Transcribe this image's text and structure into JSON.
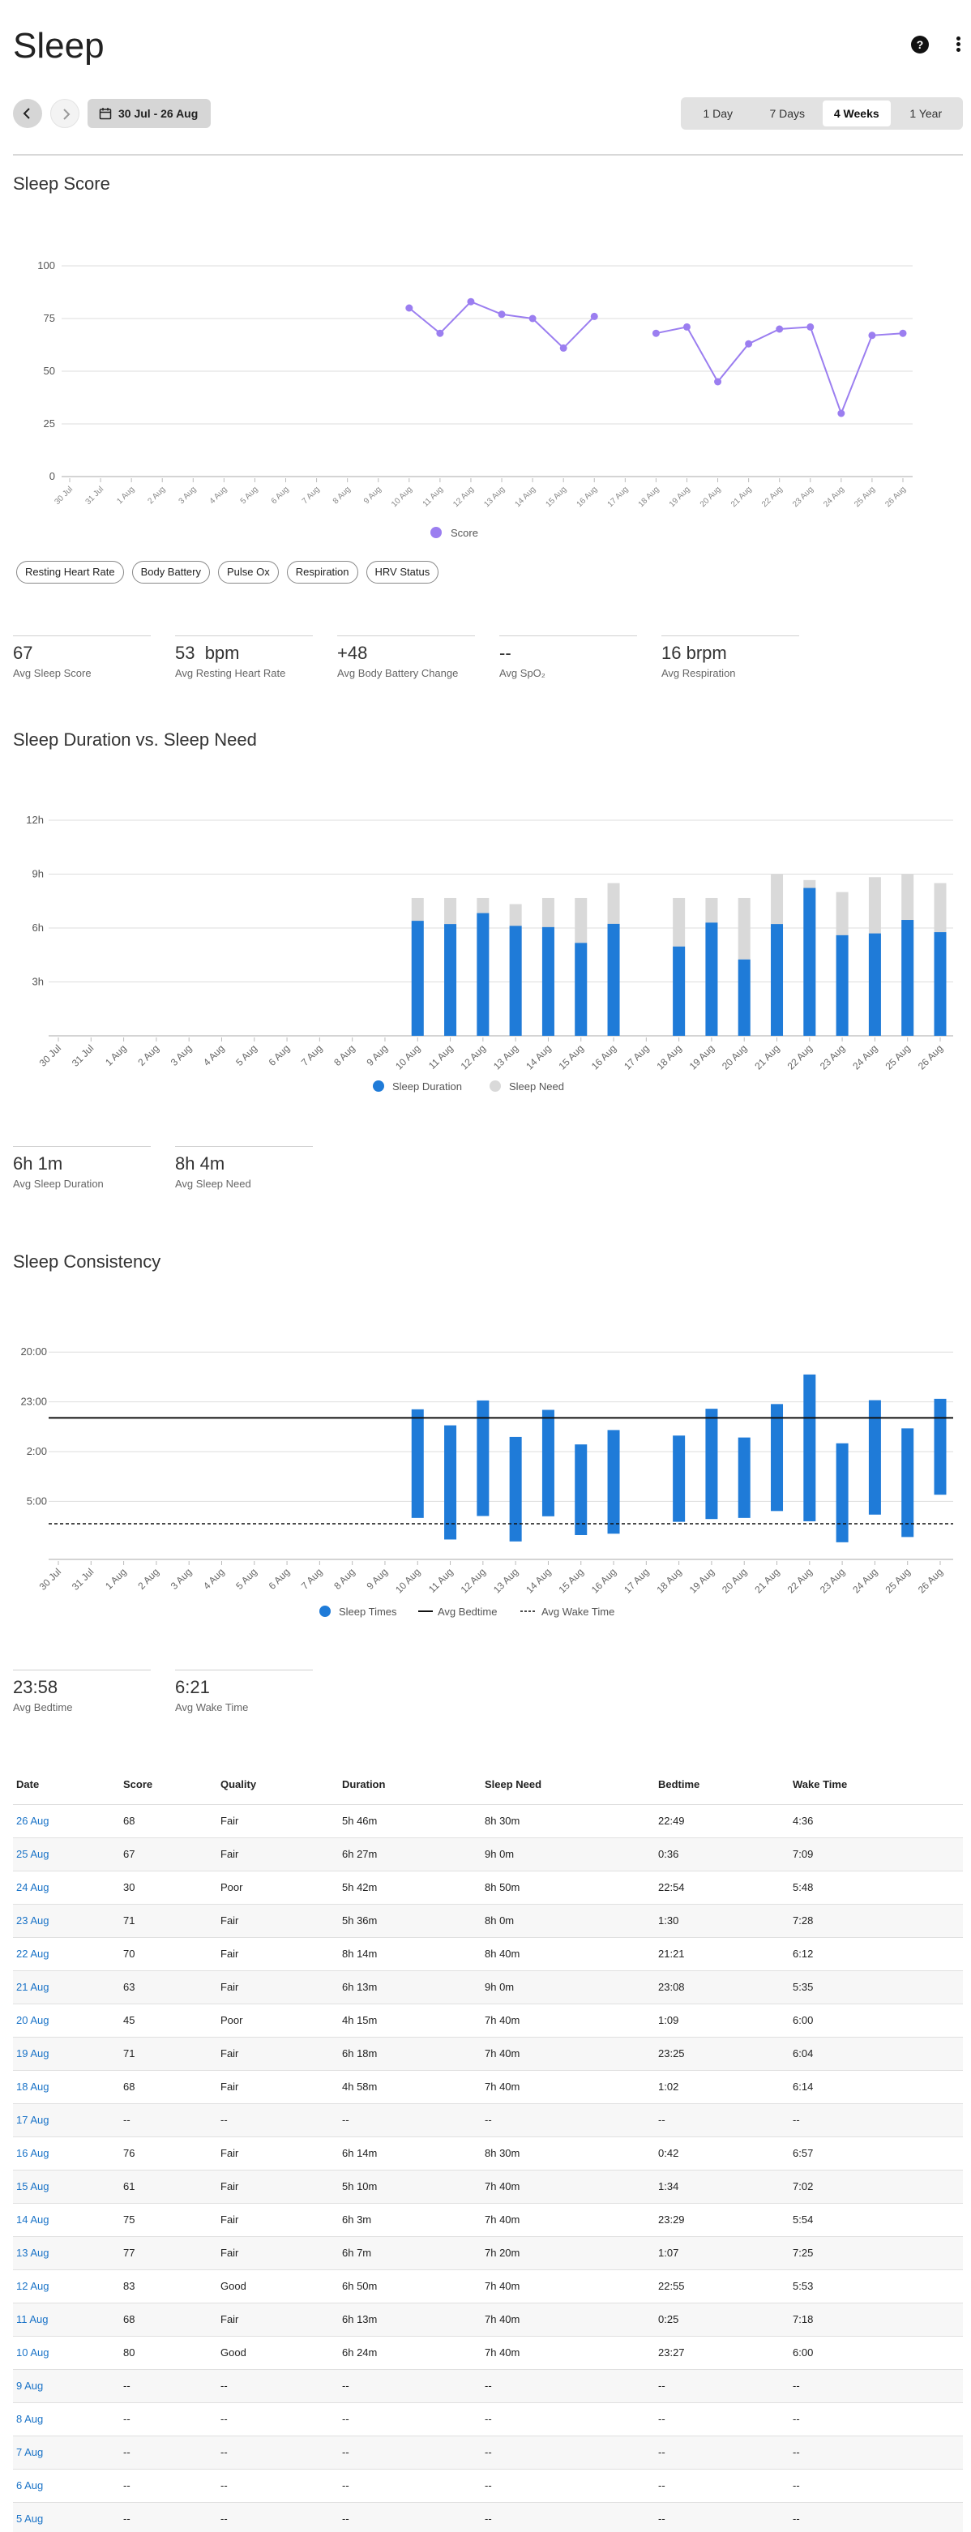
{
  "page": {
    "title": "Sleep"
  },
  "nav": {
    "date_range": "30 Jul - 26 Aug",
    "periods": [
      {
        "label": "1 Day"
      },
      {
        "label": "7 Days"
      },
      {
        "label": "4 Weeks",
        "active": true
      },
      {
        "label": "1 Year"
      }
    ]
  },
  "dates": [
    "30 Jul",
    "31 Jul",
    "1 Aug",
    "2 Aug",
    "3 Aug",
    "4 Aug",
    "5 Aug",
    "6 Aug",
    "7 Aug",
    "8 Aug",
    "9 Aug",
    "10 Aug",
    "11 Aug",
    "12 Aug",
    "13 Aug",
    "14 Aug",
    "15 Aug",
    "16 Aug",
    "17 Aug",
    "18 Aug",
    "19 Aug",
    "20 Aug",
    "21 Aug",
    "22 Aug",
    "23 Aug",
    "24 Aug",
    "25 Aug",
    "26 Aug"
  ],
  "score_section": {
    "title": "Sleep Score",
    "legend": "Score",
    "toggles": [
      "Resting Heart Rate",
      "Body Battery",
      "Pulse Ox",
      "Respiration",
      "HRV Status"
    ],
    "stats": [
      {
        "value": "67",
        "label": "Avg Sleep Score"
      },
      {
        "value": "53  bpm",
        "label": "Avg Resting Heart Rate"
      },
      {
        "value": "+48",
        "label": "Avg Body Battery Change"
      },
      {
        "value": "--",
        "label": "Avg SpO₂"
      },
      {
        "value": "16 brpm",
        "label": "Avg Respiration"
      }
    ]
  },
  "duration_section": {
    "title": "Sleep Duration vs. Sleep Need",
    "legend": [
      "Sleep Duration",
      "Sleep Need"
    ],
    "stats": [
      {
        "value": "6h 1m",
        "label": "Avg Sleep Duration"
      },
      {
        "value": "8h 4m",
        "label": "Avg Sleep Need"
      }
    ]
  },
  "consistency_section": {
    "title": "Sleep Consistency",
    "legend": [
      "Sleep Times",
      "Avg Bedtime",
      "Avg Wake Time"
    ],
    "stats": [
      {
        "value": "23:58",
        "label": "Avg Bedtime"
      },
      {
        "value": "6:21",
        "label": "Avg Wake Time"
      }
    ]
  },
  "chart_data": [
    {
      "type": "line",
      "title": "Sleep Score",
      "x": [
        "30 Jul",
        "31 Jul",
        "1 Aug",
        "2 Aug",
        "3 Aug",
        "4 Aug",
        "5 Aug",
        "6 Aug",
        "7 Aug",
        "8 Aug",
        "9 Aug",
        "10 Aug",
        "11 Aug",
        "12 Aug",
        "13 Aug",
        "14 Aug",
        "15 Aug",
        "16 Aug",
        "17 Aug",
        "18 Aug",
        "19 Aug",
        "20 Aug",
        "21 Aug",
        "22 Aug",
        "23 Aug",
        "24 Aug",
        "25 Aug",
        "26 Aug"
      ],
      "series": [
        {
          "name": "Score",
          "color": "#9b7ef0",
          "values": [
            null,
            null,
            null,
            null,
            null,
            null,
            null,
            null,
            null,
            null,
            null,
            80,
            68,
            83,
            77,
            75,
            61,
            76,
            null,
            68,
            71,
            45,
            63,
            70,
            71,
            30,
            67,
            68
          ]
        }
      ],
      "ylim": [
        0,
        100
      ],
      "yticks": [
        0,
        25,
        50,
        75,
        100
      ],
      "legend": "bottom"
    },
    {
      "type": "bar",
      "title": "Sleep Duration vs. Sleep Need",
      "categories": [
        "30 Jul",
        "31 Jul",
        "1 Aug",
        "2 Aug",
        "3 Aug",
        "4 Aug",
        "5 Aug",
        "6 Aug",
        "7 Aug",
        "8 Aug",
        "9 Aug",
        "10 Aug",
        "11 Aug",
        "12 Aug",
        "13 Aug",
        "14 Aug",
        "15 Aug",
        "16 Aug",
        "17 Aug",
        "18 Aug",
        "19 Aug",
        "20 Aug",
        "21 Aug",
        "22 Aug",
        "23 Aug",
        "24 Aug",
        "25 Aug",
        "26 Aug"
      ],
      "series": [
        {
          "name": "Sleep Duration",
          "color": "#1f7bd8",
          "unit": "hours",
          "values": [
            null,
            null,
            null,
            null,
            null,
            null,
            null,
            null,
            null,
            null,
            null,
            6.4,
            6.22,
            6.83,
            6.12,
            6.05,
            5.17,
            6.23,
            null,
            4.97,
            6.3,
            4.25,
            6.22,
            8.23,
            5.6,
            5.7,
            6.45,
            5.77
          ]
        },
        {
          "name": "Sleep Need",
          "color": "#d9d9d9",
          "unit": "hours",
          "values": [
            null,
            null,
            null,
            null,
            null,
            null,
            null,
            null,
            null,
            null,
            null,
            7.67,
            7.67,
            7.67,
            7.33,
            7.67,
            7.67,
            8.5,
            null,
            7.67,
            7.67,
            7.67,
            9.0,
            8.67,
            8.0,
            8.83,
            9.0,
            8.5
          ]
        }
      ],
      "yticks": [
        "3h",
        "6h",
        "9h",
        "12h"
      ],
      "ylim": [
        0,
        12
      ],
      "legend": "bottom"
    },
    {
      "type": "bar",
      "title": "Sleep Consistency",
      "categories": [
        "30 Jul",
        "31 Jul",
        "1 Aug",
        "2 Aug",
        "3 Aug",
        "4 Aug",
        "5 Aug",
        "6 Aug",
        "7 Aug",
        "8 Aug",
        "9 Aug",
        "10 Aug",
        "11 Aug",
        "12 Aug",
        "13 Aug",
        "14 Aug",
        "15 Aug",
        "16 Aug",
        "17 Aug",
        "18 Aug",
        "19 Aug",
        "20 Aug",
        "21 Aug",
        "22 Aug",
        "23 Aug",
        "24 Aug",
        "25 Aug",
        "26 Aug"
      ],
      "series": [
        {
          "name": "Sleep Times",
          "color": "#1f7bd8",
          "bedtime": [
            null,
            null,
            null,
            null,
            null,
            null,
            null,
            null,
            null,
            null,
            null,
            "23:27",
            "0:25",
            "22:55",
            "1:07",
            "23:29",
            "1:34",
            "0:42",
            null,
            "1:02",
            "23:25",
            "1:09",
            "23:08",
            "21:21",
            "1:30",
            "22:54",
            "0:36",
            "22:49"
          ],
          "waketime": [
            null,
            null,
            null,
            null,
            null,
            null,
            null,
            null,
            null,
            null,
            null,
            "6:00",
            "7:18",
            "5:53",
            "7:25",
            "5:54",
            "7:02",
            "6:57",
            null,
            "6:14",
            "6:04",
            "6:00",
            "5:35",
            "6:12",
            "7:28",
            "5:48",
            "7:09",
            "4:36"
          ]
        }
      ],
      "avg_bedtime": "23:58",
      "avg_waketime": "6:21",
      "yticks": [
        "20:00",
        "23:00",
        "2:00",
        "5:00"
      ],
      "legend": "bottom"
    }
  ],
  "table": {
    "headers": [
      "Date",
      "Score",
      "Quality",
      "Duration",
      "Sleep Need",
      "Bedtime",
      "Wake Time"
    ],
    "rows": [
      [
        "26 Aug",
        "68",
        "Fair",
        "5h 46m",
        "8h 30m",
        "22:49",
        "4:36"
      ],
      [
        "25 Aug",
        "67",
        "Fair",
        "6h 27m",
        "9h 0m",
        "0:36",
        "7:09"
      ],
      [
        "24 Aug",
        "30",
        "Poor",
        "5h 42m",
        "8h 50m",
        "22:54",
        "5:48"
      ],
      [
        "23 Aug",
        "71",
        "Fair",
        "5h 36m",
        "8h 0m",
        "1:30",
        "7:28"
      ],
      [
        "22 Aug",
        "70",
        "Fair",
        "8h 14m",
        "8h 40m",
        "21:21",
        "6:12"
      ],
      [
        "21 Aug",
        "63",
        "Fair",
        "6h 13m",
        "9h 0m",
        "23:08",
        "5:35"
      ],
      [
        "20 Aug",
        "45",
        "Poor",
        "4h 15m",
        "7h 40m",
        "1:09",
        "6:00"
      ],
      [
        "19 Aug",
        "71",
        "Fair",
        "6h 18m",
        "7h 40m",
        "23:25",
        "6:04"
      ],
      [
        "18 Aug",
        "68",
        "Fair",
        "4h 58m",
        "7h 40m",
        "1:02",
        "6:14"
      ],
      [
        "17 Aug",
        "--",
        "--",
        "--",
        "--",
        "--",
        "--"
      ],
      [
        "16 Aug",
        "76",
        "Fair",
        "6h 14m",
        "8h 30m",
        "0:42",
        "6:57"
      ],
      [
        "15 Aug",
        "61",
        "Fair",
        "5h 10m",
        "7h 40m",
        "1:34",
        "7:02"
      ],
      [
        "14 Aug",
        "75",
        "Fair",
        "6h 3m",
        "7h 40m",
        "23:29",
        "5:54"
      ],
      [
        "13 Aug",
        "77",
        "Fair",
        "6h 7m",
        "7h 20m",
        "1:07",
        "7:25"
      ],
      [
        "12 Aug",
        "83",
        "Good",
        "6h 50m",
        "7h 40m",
        "22:55",
        "5:53"
      ],
      [
        "11 Aug",
        "68",
        "Fair",
        "6h 13m",
        "7h 40m",
        "0:25",
        "7:18"
      ],
      [
        "10 Aug",
        "80",
        "Good",
        "6h 24m",
        "7h 40m",
        "23:27",
        "6:00"
      ],
      [
        "9 Aug",
        "--",
        "--",
        "--",
        "--",
        "--",
        "--"
      ],
      [
        "8 Aug",
        "--",
        "--",
        "--",
        "--",
        "--",
        "--"
      ],
      [
        "7 Aug",
        "--",
        "--",
        "--",
        "--",
        "--",
        "--"
      ],
      [
        "6 Aug",
        "--",
        "--",
        "--",
        "--",
        "--",
        "--"
      ],
      [
        "5 Aug",
        "--",
        "--",
        "--",
        "--",
        "--",
        "--"
      ]
    ]
  }
}
